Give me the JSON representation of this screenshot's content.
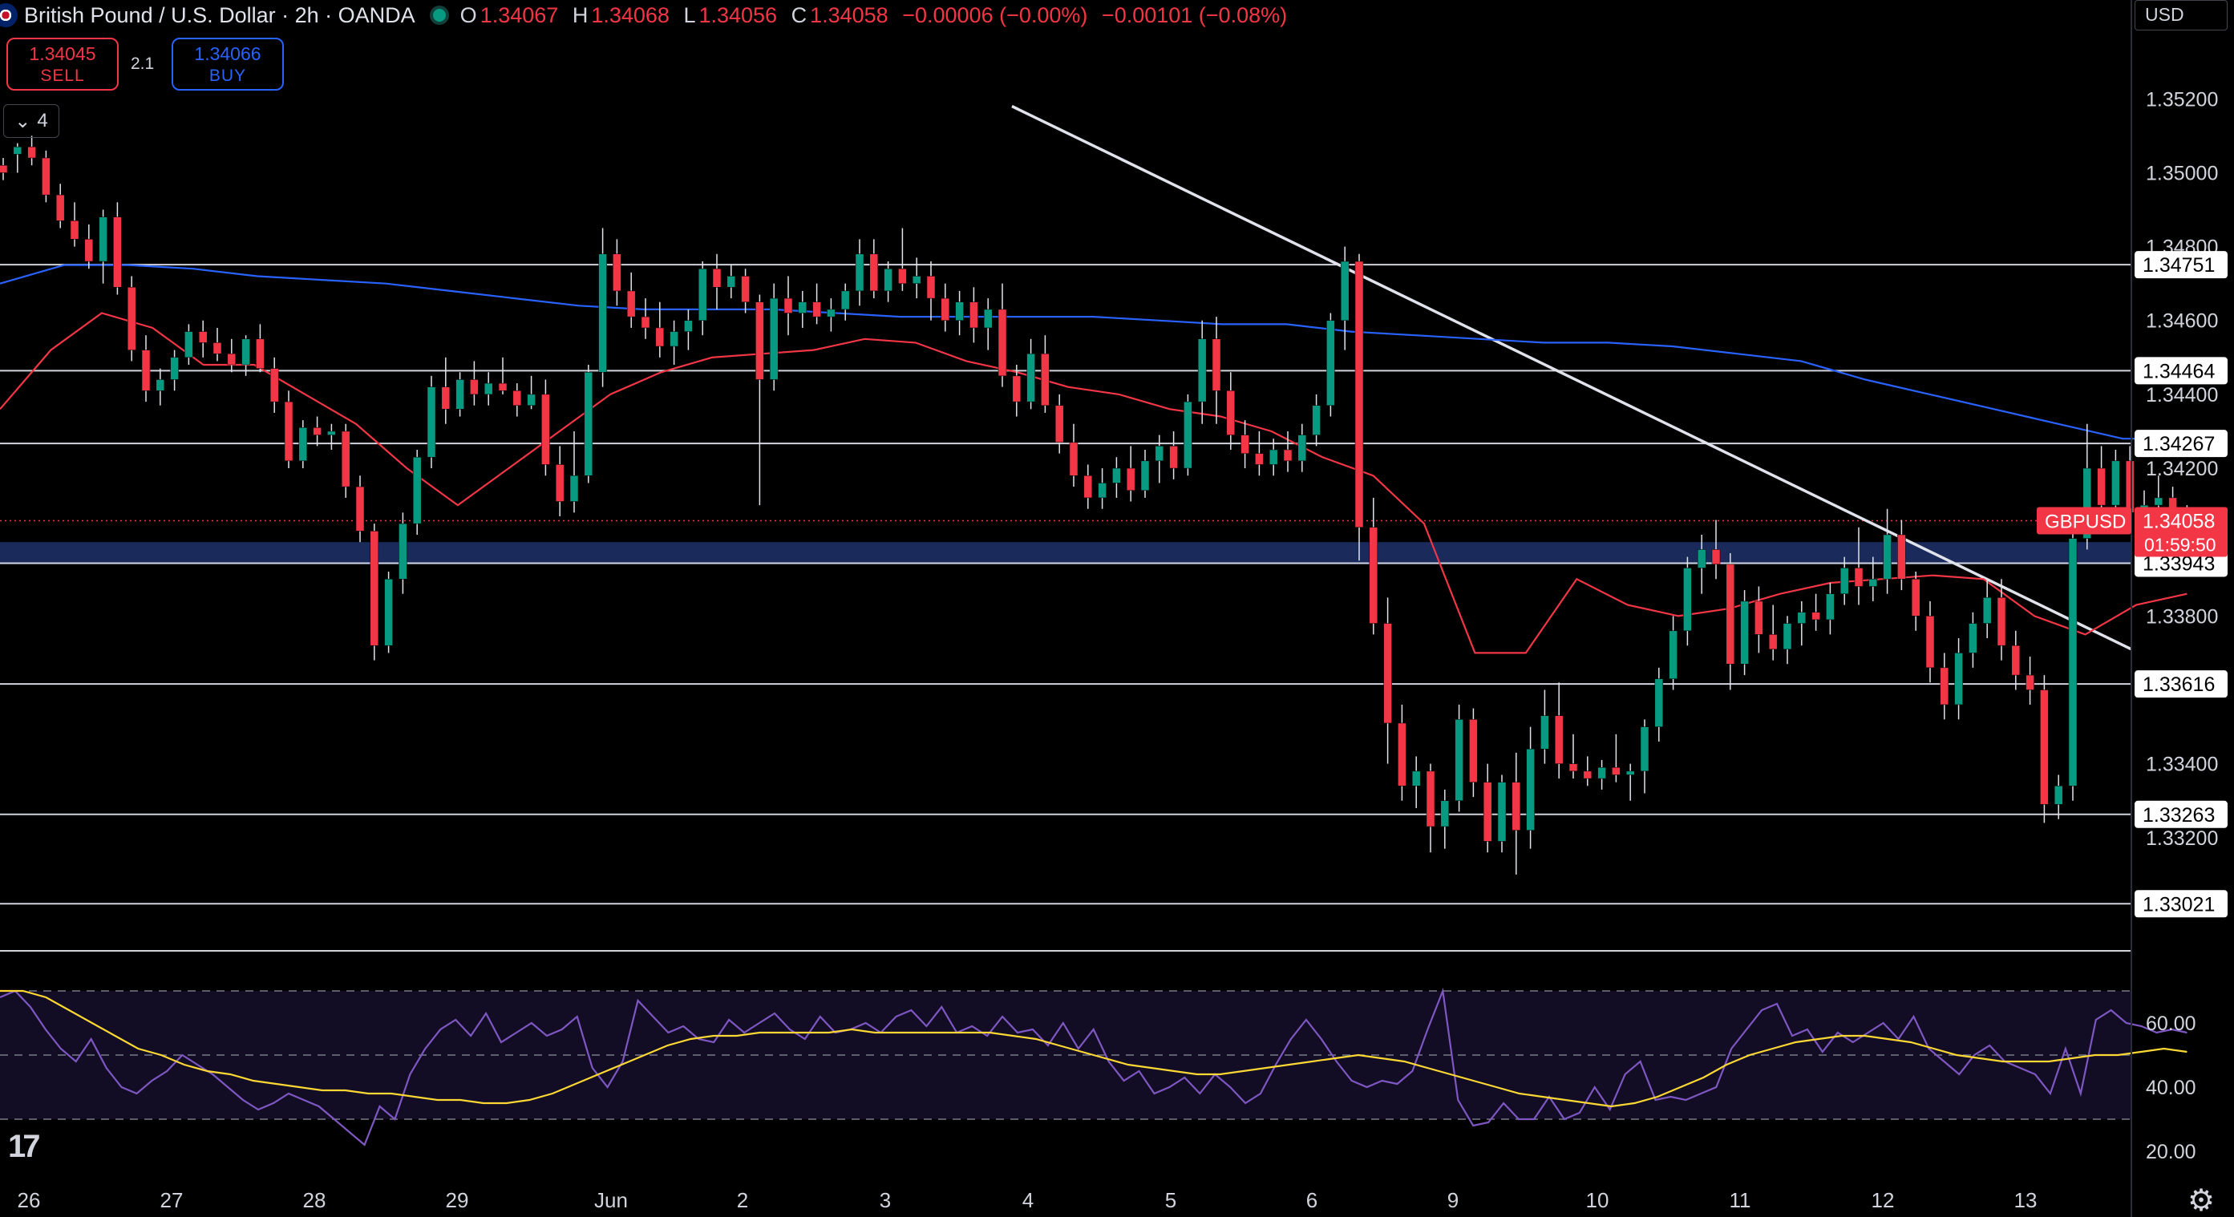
{
  "header": {
    "symbol_title": "British Pound / U.S. Dollar · 2h · OANDA",
    "open_label": "O",
    "open": "1.34067",
    "high_label": "H",
    "high": "1.34068",
    "low_label": "L",
    "low": "1.34056",
    "close_label": "C",
    "close": "1.34058",
    "change": "−0.00006 (−0.00%)",
    "change_day": "−0.00101 (−0.08%)"
  },
  "trade": {
    "sell_price": "1.34045",
    "sell_label": "SELL",
    "spread": "2.1",
    "buy_price": "1.34066",
    "buy_label": "BUY"
  },
  "indicators_toggle": {
    "count": "4"
  },
  "currency_selector": "USD",
  "symbol_tag": "GBPUSD",
  "last_price": "1.34058",
  "countdown": "01:59:50",
  "colors": {
    "up": "#089981",
    "down": "#f23645",
    "ma_fast": "#f23645",
    "ma_slow": "#2962ff",
    "rsi": "#7e57c2",
    "rsi_ma": "#fdd835",
    "zone": "#1a2a5a"
  },
  "logo_icon": "tradingview-logo-icon",
  "settings_icon": "gear-icon",
  "chart_data": {
    "type": "candlestick",
    "y_range": [
      1.3295,
      1.3532
    ],
    "y_ticks": [
      "1.35200",
      "1.35000",
      "1.34800",
      "1.34600",
      "1.34400",
      "1.34200",
      "1.33800",
      "1.33400",
      "1.33200"
    ],
    "x_labels": [
      "26",
      "27",
      "28",
      "29",
      "Jun",
      "2",
      "3",
      "4",
      "5",
      "6",
      "9",
      "10",
      "11",
      "12",
      "13"
    ],
    "horizontal_levels": [
      "1.34751",
      "1.34464",
      "1.34267",
      "1.33943",
      "1.33616",
      "1.33263",
      "1.33021"
    ],
    "support_zone": [
      1.3394,
      1.34
    ],
    "trendline": {
      "from": [
        "Jun 3",
        1.3518
      ],
      "to": [
        "13",
        1.3371
      ]
    },
    "candles": [
      [
        1.3502,
        1.3504,
        1.3498,
        1.35
      ],
      [
        1.3505,
        1.3508,
        1.35,
        1.3507
      ],
      [
        1.3507,
        1.351,
        1.3502,
        1.3504
      ],
      [
        1.3504,
        1.3506,
        1.3492,
        1.3494
      ],
      [
        1.3494,
        1.3497,
        1.3485,
        1.3487
      ],
      [
        1.3487,
        1.3492,
        1.348,
        1.3482
      ],
      [
        1.3482,
        1.3486,
        1.3474,
        1.3476
      ],
      [
        1.3476,
        1.349,
        1.347,
        1.3488
      ],
      [
        1.3488,
        1.3492,
        1.3467,
        1.3469
      ],
      [
        1.3469,
        1.3472,
        1.3449,
        1.3452
      ],
      [
        1.3452,
        1.3456,
        1.3438,
        1.3441
      ],
      [
        1.3441,
        1.3447,
        1.3437,
        1.3444
      ],
      [
        1.3444,
        1.3452,
        1.3441,
        1.345
      ],
      [
        1.345,
        1.3459,
        1.3448,
        1.3457
      ],
      [
        1.3457,
        1.346,
        1.345,
        1.3454
      ],
      [
        1.3454,
        1.3458,
        1.3449,
        1.3451
      ],
      [
        1.3451,
        1.3455,
        1.3446,
        1.3448
      ],
      [
        1.3448,
        1.3456,
        1.3445,
        1.3455
      ],
      [
        1.3455,
        1.3459,
        1.3446,
        1.3447
      ],
      [
        1.3447,
        1.345,
        1.3435,
        1.3438
      ],
      [
        1.3438,
        1.3441,
        1.342,
        1.3422
      ],
      [
        1.3422,
        1.3433,
        1.342,
        1.3431
      ],
      [
        1.3431,
        1.3434,
        1.3426,
        1.3429
      ],
      [
        1.3429,
        1.3432,
        1.3425,
        1.343
      ],
      [
        1.343,
        1.3432,
        1.3412,
        1.3415
      ],
      [
        1.3415,
        1.3418,
        1.34,
        1.3403
      ],
      [
        1.3403,
        1.3405,
        1.3368,
        1.3372
      ],
      [
        1.3372,
        1.3392,
        1.337,
        1.339
      ],
      [
        1.339,
        1.3408,
        1.3386,
        1.3405
      ],
      [
        1.3405,
        1.3425,
        1.3402,
        1.3423
      ],
      [
        1.3423,
        1.3445,
        1.342,
        1.3442
      ],
      [
        1.3442,
        1.345,
        1.3432,
        1.3436
      ],
      [
        1.3436,
        1.3446,
        1.3434,
        1.3444
      ],
      [
        1.3444,
        1.3449,
        1.3437,
        1.344
      ],
      [
        1.344,
        1.3446,
        1.3437,
        1.3443
      ],
      [
        1.3443,
        1.345,
        1.344,
        1.3441
      ],
      [
        1.3441,
        1.3443,
        1.3434,
        1.3437
      ],
      [
        1.3437,
        1.3445,
        1.3436,
        1.344
      ],
      [
        1.344,
        1.3444,
        1.3418,
        1.3421
      ],
      [
        1.3421,
        1.3426,
        1.3407,
        1.3411
      ],
      [
        1.3411,
        1.343,
        1.3408,
        1.3418
      ],
      [
        1.3418,
        1.3448,
        1.3416,
        1.3446
      ],
      [
        1.3446,
        1.3485,
        1.3442,
        1.3478
      ],
      [
        1.3478,
        1.3482,
        1.3464,
        1.3468
      ],
      [
        1.3468,
        1.3473,
        1.3458,
        1.3461
      ],
      [
        1.3461,
        1.3466,
        1.3455,
        1.3458
      ],
      [
        1.3458,
        1.3465,
        1.345,
        1.3453
      ],
      [
        1.3453,
        1.346,
        1.3448,
        1.3457
      ],
      [
        1.3457,
        1.3463,
        1.3452,
        1.346
      ],
      [
        1.346,
        1.3476,
        1.3456,
        1.3474
      ],
      [
        1.3474,
        1.3478,
        1.3463,
        1.3469
      ],
      [
        1.3469,
        1.3475,
        1.3466,
        1.3472
      ],
      [
        1.3472,
        1.3474,
        1.3462,
        1.3465
      ],
      [
        1.3465,
        1.3467,
        1.341,
        1.3444
      ],
      [
        1.3444,
        1.347,
        1.3441,
        1.3466
      ],
      [
        1.3466,
        1.3472,
        1.3456,
        1.3462
      ],
      [
        1.3462,
        1.3468,
        1.3458,
        1.3465
      ],
      [
        1.3465,
        1.347,
        1.3459,
        1.3461
      ],
      [
        1.3461,
        1.3466,
        1.3457,
        1.3463
      ],
      [
        1.3463,
        1.347,
        1.346,
        1.3468
      ],
      [
        1.3468,
        1.3482,
        1.3464,
        1.3478
      ],
      [
        1.3478,
        1.3482,
        1.3466,
        1.3468
      ],
      [
        1.3468,
        1.3476,
        1.3465,
        1.3474
      ],
      [
        1.3474,
        1.3485,
        1.3468,
        1.347
      ],
      [
        1.347,
        1.3477,
        1.3466,
        1.3472
      ],
      [
        1.3472,
        1.3476,
        1.346,
        1.3466
      ],
      [
        1.3466,
        1.347,
        1.3457,
        1.346
      ],
      [
        1.346,
        1.3468,
        1.3456,
        1.3465
      ],
      [
        1.3465,
        1.3469,
        1.3454,
        1.3458
      ],
      [
        1.3458,
        1.3466,
        1.3452,
        1.3463
      ],
      [
        1.3463,
        1.347,
        1.3442,
        1.3445
      ],
      [
        1.3445,
        1.3448,
        1.3434,
        1.3438
      ],
      [
        1.3438,
        1.3455,
        1.3436,
        1.3451
      ],
      [
        1.3451,
        1.3456,
        1.3435,
        1.3437
      ],
      [
        1.3437,
        1.344,
        1.3424,
        1.3427
      ],
      [
        1.3427,
        1.3432,
        1.3415,
        1.3418
      ],
      [
        1.3418,
        1.3421,
        1.3409,
        1.3412
      ],
      [
        1.3412,
        1.342,
        1.3409,
        1.3416
      ],
      [
        1.3416,
        1.3423,
        1.3412,
        1.342
      ],
      [
        1.342,
        1.3426,
        1.3411,
        1.3414
      ],
      [
        1.3414,
        1.3425,
        1.3412,
        1.3422
      ],
      [
        1.3422,
        1.3429,
        1.3416,
        1.3426
      ],
      [
        1.3426,
        1.343,
        1.3417,
        1.342
      ],
      [
        1.342,
        1.344,
        1.3418,
        1.3438
      ],
      [
        1.3438,
        1.346,
        1.3432,
        1.3455
      ],
      [
        1.3455,
        1.3461,
        1.3432,
        1.3441
      ],
      [
        1.3441,
        1.3446,
        1.3425,
        1.3429
      ],
      [
        1.3429,
        1.3433,
        1.342,
        1.3424
      ],
      [
        1.3424,
        1.343,
        1.3418,
        1.3421
      ],
      [
        1.3421,
        1.3428,
        1.3418,
        1.3425
      ],
      [
        1.3425,
        1.343,
        1.3419,
        1.3422
      ],
      [
        1.3422,
        1.3432,
        1.3419,
        1.3429
      ],
      [
        1.3429,
        1.344,
        1.3426,
        1.3437
      ],
      [
        1.3437,
        1.3462,
        1.3434,
        1.346
      ],
      [
        1.346,
        1.348,
        1.3452,
        1.3476
      ],
      [
        1.3476,
        1.3478,
        1.3395,
        1.3404
      ],
      [
        1.3404,
        1.3412,
        1.3375,
        1.3378
      ],
      [
        1.3378,
        1.3385,
        1.334,
        1.3351
      ],
      [
        1.3351,
        1.3356,
        1.333,
        1.3334
      ],
      [
        1.3334,
        1.3342,
        1.3328,
        1.3338
      ],
      [
        1.3338,
        1.334,
        1.3316,
        1.3323
      ],
      [
        1.3323,
        1.3333,
        1.3317,
        1.333
      ],
      [
        1.333,
        1.3356,
        1.3327,
        1.3352
      ],
      [
        1.3352,
        1.3355,
        1.3331,
        1.3335
      ],
      [
        1.3335,
        1.334,
        1.3316,
        1.3319
      ],
      [
        1.3319,
        1.3337,
        1.3316,
        1.3335
      ],
      [
        1.3335,
        1.3343,
        1.331,
        1.3322
      ],
      [
        1.3322,
        1.335,
        1.3317,
        1.3344
      ],
      [
        1.3344,
        1.336,
        1.334,
        1.3353
      ],
      [
        1.3353,
        1.3362,
        1.3336,
        1.334
      ],
      [
        1.334,
        1.3348,
        1.3336,
        1.3338
      ],
      [
        1.3338,
        1.3342,
        1.3334,
        1.3336
      ],
      [
        1.3336,
        1.3341,
        1.3333,
        1.3339
      ],
      [
        1.3339,
        1.3348,
        1.3335,
        1.3337
      ],
      [
        1.3337,
        1.334,
        1.333,
        1.3338
      ],
      [
        1.3338,
        1.3352,
        1.3332,
        1.335
      ],
      [
        1.335,
        1.3366,
        1.3346,
        1.3363
      ],
      [
        1.3363,
        1.338,
        1.336,
        1.3376
      ],
      [
        1.3376,
        1.3396,
        1.3372,
        1.3393
      ],
      [
        1.3393,
        1.3402,
        1.3386,
        1.3398
      ],
      [
        1.3398,
        1.3406,
        1.339,
        1.3394
      ],
      [
        1.3394,
        1.3397,
        1.336,
        1.3367
      ],
      [
        1.3367,
        1.3387,
        1.3364,
        1.3384
      ],
      [
        1.3384,
        1.3388,
        1.337,
        1.3375
      ],
      [
        1.3375,
        1.3383,
        1.3368,
        1.3371
      ],
      [
        1.3371,
        1.338,
        1.3367,
        1.3378
      ],
      [
        1.3378,
        1.3384,
        1.3372,
        1.3381
      ],
      [
        1.3381,
        1.3386,
        1.3376,
        1.3379
      ],
      [
        1.3379,
        1.3389,
        1.3375,
        1.3386
      ],
      [
        1.3386,
        1.3396,
        1.3383,
        1.3393
      ],
      [
        1.3393,
        1.3404,
        1.3383,
        1.3388
      ],
      [
        1.3388,
        1.3396,
        1.3384,
        1.339
      ],
      [
        1.339,
        1.3409,
        1.3386,
        1.3402
      ],
      [
        1.3402,
        1.3406,
        1.3387,
        1.339
      ],
      [
        1.339,
        1.3392,
        1.3376,
        1.338
      ],
      [
        1.338,
        1.3384,
        1.3362,
        1.3366
      ],
      [
        1.3366,
        1.337,
        1.3352,
        1.3356
      ],
      [
        1.3356,
        1.3374,
        1.3352,
        1.337
      ],
      [
        1.337,
        1.3381,
        1.3366,
        1.3378
      ],
      [
        1.3378,
        1.339,
        1.3374,
        1.3385
      ],
      [
        1.3385,
        1.339,
        1.3368,
        1.3372
      ],
      [
        1.3372,
        1.3376,
        1.336,
        1.3364
      ],
      [
        1.3364,
        1.3369,
        1.3356,
        1.336
      ],
      [
        1.336,
        1.3364,
        1.3324,
        1.3329
      ],
      [
        1.3329,
        1.3337,
        1.3325,
        1.3334
      ],
      [
        1.3334,
        1.3406,
        1.333,
        1.3401
      ],
      [
        1.3401,
        1.3432,
        1.3398,
        1.342
      ],
      [
        1.342,
        1.3426,
        1.3407,
        1.341
      ],
      [
        1.341,
        1.3425,
        1.3406,
        1.3422
      ],
      [
        1.3422,
        1.3426,
        1.3404,
        1.3408
      ],
      [
        1.3408,
        1.3414,
        1.3406,
        1.341
      ],
      [
        1.341,
        1.3418,
        1.3398,
        1.3412
      ],
      [
        1.3412,
        1.3415,
        1.3404,
        1.3409
      ],
      [
        1.3409,
        1.341,
        1.3405,
        1.3406
      ]
    ],
    "ma_fast": [
      1.3436,
      1.3452,
      1.3462,
      1.3458,
      1.3448,
      1.3448,
      1.344,
      1.3432,
      1.342,
      1.341,
      1.342,
      1.343,
      1.344,
      1.3446,
      1.345,
      1.3451,
      1.3452,
      1.3455,
      1.3454,
      1.3449,
      1.3446,
      1.3442,
      1.344,
      1.3436,
      1.3434,
      1.343,
      1.3423,
      1.3418,
      1.3405,
      1.337,
      1.337,
      1.339,
      1.3383,
      1.338,
      1.3382,
      1.3386,
      1.3389,
      1.339,
      1.3391,
      1.339,
      1.338,
      1.3375,
      1.3383,
      1.3386
    ],
    "ma_slow": [
      1.347,
      1.3475,
      1.3475,
      1.3474,
      1.3472,
      1.3471,
      1.347,
      1.3468,
      1.3466,
      1.3464,
      1.3463,
      1.3463,
      1.3463,
      1.3462,
      1.3461,
      1.3461,
      1.3461,
      1.3461,
      1.346,
      1.3459,
      1.3459,
      1.3457,
      1.3456,
      1.3455,
      1.3454,
      1.3454,
      1.3453,
      1.3451,
      1.3449,
      1.3444,
      1.344,
      1.3436,
      1.3432,
      1.3428,
      1.3428
    ],
    "rsi_y_ticks": [
      "60.00",
      "40.00",
      "20.00"
    ],
    "rsi_bands": [
      70,
      50,
      30
    ],
    "rsi": [
      68,
      70,
      65,
      58,
      52,
      48,
      55,
      46,
      40,
      38,
      42,
      45,
      50,
      47,
      44,
      40,
      36,
      33,
      35,
      38,
      36,
      34,
      30,
      26,
      22,
      34,
      30,
      44,
      52,
      58,
      61,
      56,
      63,
      54,
      57,
      60,
      56,
      58,
      62,
      46,
      40,
      48,
      67,
      62,
      57,
      59,
      55,
      54,
      61,
      57,
      60,
      63,
      58,
      55,
      62,
      57,
      58,
      60,
      57,
      62,
      64,
      59,
      65,
      57,
      59,
      56,
      62,
      57,
      58,
      53,
      60,
      52,
      58,
      48,
      42,
      45,
      38,
      40,
      43,
      38,
      44,
      40,
      35,
      38,
      47,
      55,
      61,
      55,
      48,
      42,
      40,
      42,
      41,
      45,
      58,
      70,
      36,
      28,
      29,
      35,
      30,
      30,
      37,
      30,
      32,
      40,
      33,
      44,
      48,
      36,
      37,
      36,
      38,
      40,
      52,
      58,
      64,
      66,
      56,
      58,
      51,
      57,
      54,
      57,
      60,
      55,
      62,
      52,
      48,
      44,
      50,
      53,
      48,
      46,
      44,
      38,
      52,
      38,
      61,
      64,
      60,
      59,
      57,
      58,
      57
    ],
    "rsi_ma": [
      70,
      70,
      68,
      64,
      60,
      56,
      52,
      50,
      47,
      45,
      44,
      42,
      41,
      40,
      39,
      39,
      38,
      38,
      37,
      36,
      36,
      35,
      35,
      36,
      38,
      41,
      44,
      47,
      50,
      53,
      55,
      56,
      56,
      57,
      57,
      57,
      57,
      58,
      57,
      57,
      57,
      57,
      57,
      57,
      56,
      55,
      53,
      51,
      49,
      47,
      46,
      45,
      44,
      44,
      45,
      46,
      47,
      48,
      49,
      50,
      49,
      48,
      46,
      44,
      42,
      40,
      38,
      37,
      36,
      35,
      34,
      35,
      37,
      40,
      43,
      47,
      50,
      52,
      54,
      55,
      56,
      56,
      55,
      54,
      52,
      50,
      49,
      48,
      48,
      48,
      49,
      50,
      50,
      51,
      52,
      51
    ]
  }
}
